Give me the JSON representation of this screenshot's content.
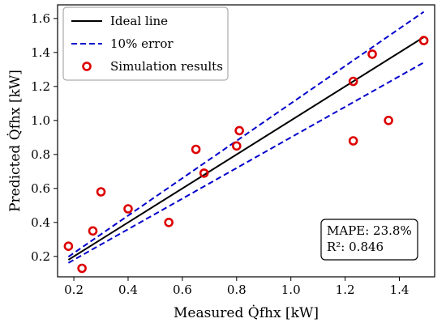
{
  "chart_data": {
    "type": "scatter",
    "xlabel": "Measured Q̇fhx [kW]",
    "ylabel": "Predicted Q̇fhx [kW]",
    "xlim": [
      0.14,
      1.53
    ],
    "ylim": [
      0.08,
      1.68
    ],
    "x_ticks": [
      0.2,
      0.4,
      0.6,
      0.8,
      1.0,
      1.2,
      1.4
    ],
    "y_ticks": [
      0.2,
      0.4,
      0.6,
      0.8,
      1.0,
      1.2,
      1.4,
      1.6
    ],
    "x_tick_labels": [
      "0.2",
      "0.4",
      "0.6",
      "0.8",
      "1.0",
      "1.2",
      "1.4"
    ],
    "y_tick_labels": [
      "0.2",
      "0.4",
      "0.6",
      "0.8",
      "1.0",
      "1.2",
      "1.4",
      "1.6"
    ],
    "grid": false,
    "legend_position": "top-left",
    "series": [
      {
        "name": "Ideal line",
        "kind": "line",
        "color": "#000000",
        "style": "solid",
        "x": [
          0.18,
          1.49
        ],
        "y": [
          0.18,
          1.49
        ]
      },
      {
        "name": "10% error",
        "kind": "line",
        "color": "#0000cc",
        "style": "dashed",
        "x": [
          0.18,
          1.49
        ],
        "y": [
          0.198,
          1.639
        ]
      },
      {
        "name": "",
        "kind": "line",
        "color": "#0000cc",
        "style": "dashed",
        "x": [
          0.18,
          1.49
        ],
        "y": [
          0.162,
          1.341
        ]
      },
      {
        "name": "Simulation results",
        "kind": "scatter",
        "color": "#dd0000",
        "points": [
          [
            0.18,
            0.26
          ],
          [
            0.23,
            0.13
          ],
          [
            0.27,
            0.35
          ],
          [
            0.3,
            0.58
          ],
          [
            0.4,
            0.48
          ],
          [
            0.55,
            0.4
          ],
          [
            0.65,
            0.83
          ],
          [
            0.68,
            0.69
          ],
          [
            0.8,
            0.85
          ],
          [
            0.81,
            0.94
          ],
          [
            1.23,
            1.23
          ],
          [
            1.23,
            0.88
          ],
          [
            1.3,
            1.39
          ],
          [
            1.36,
            1.0
          ],
          [
            1.49,
            1.47
          ]
        ]
      }
    ],
    "annotation": {
      "lines": [
        "MAPE: 23.8%",
        "R²: 0.846"
      ],
      "position": "bottom-right"
    }
  }
}
